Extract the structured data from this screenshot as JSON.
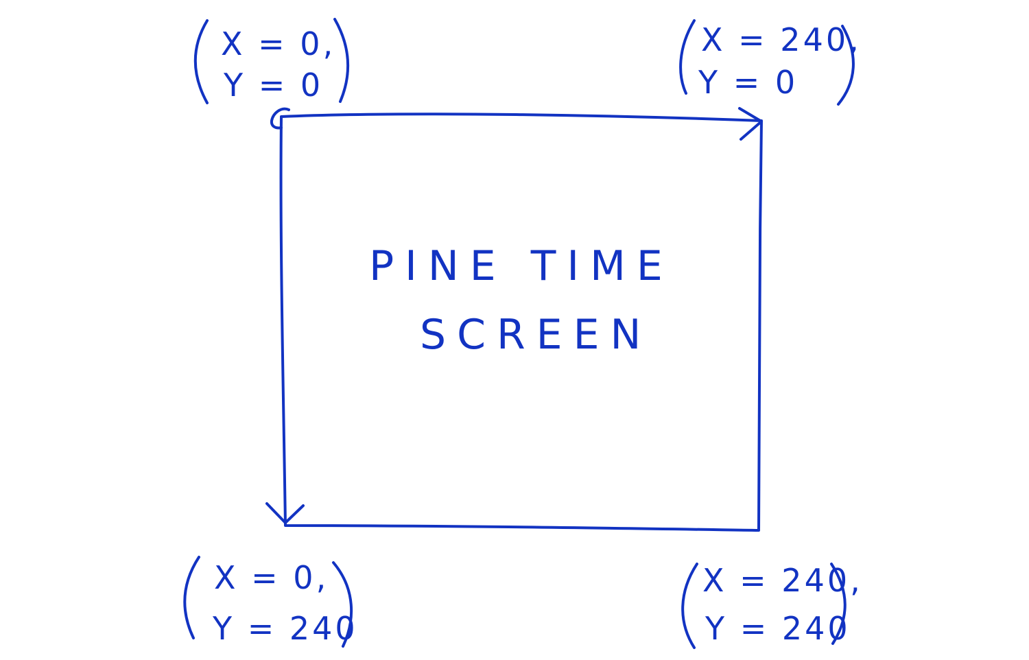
{
  "colors": {
    "ink": "#1233c2",
    "paper": "#ffffff"
  },
  "screen": {
    "title_line1": "PINE TIME",
    "title_line2": "SCREEN"
  },
  "corners": {
    "top_left": {
      "x_label": "X = 0,",
      "y_label": "Y = 0"
    },
    "top_right": {
      "x_label": "X = 240,",
      "y_label": "Y = 0"
    },
    "bottom_left": {
      "x_label": "X = 0,",
      "y_label": "Y = 240"
    },
    "bottom_right": {
      "x_label": "X = 240,",
      "y_label": "Y = 240"
    }
  }
}
